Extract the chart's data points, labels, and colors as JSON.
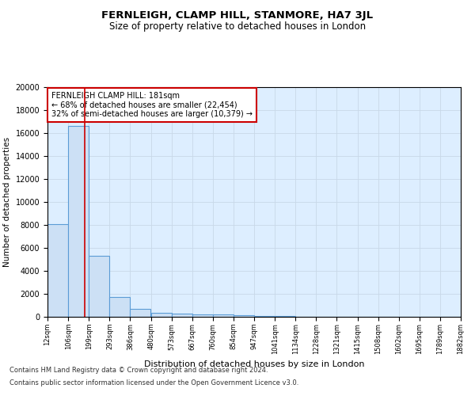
{
  "title": "FERNLEIGH, CLAMP HILL, STANMORE, HA7 3JL",
  "subtitle": "Size of property relative to detached houses in London",
  "xlabel": "Distribution of detached houses by size in London",
  "ylabel": "Number of detached properties",
  "footnote1": "Contains HM Land Registry data © Crown copyright and database right 2024.",
  "footnote2": "Contains public sector information licensed under the Open Government Licence v3.0.",
  "annotation_title": "FERNLEIGH CLAMP HILL: 181sqm",
  "annotation_line1": "← 68% of detached houses are smaller (22,454)",
  "annotation_line2": "32% of semi-detached houses are larger (10,379) →",
  "property_size": 181,
  "bar_left_edges": [
    12,
    106,
    199,
    293,
    386,
    480,
    573,
    667,
    760,
    854,
    947,
    1041,
    1134,
    1228,
    1321,
    1415,
    1508,
    1602,
    1695,
    1789
  ],
  "bar_heights": [
    8100,
    16600,
    5300,
    1750,
    700,
    350,
    280,
    220,
    200,
    150,
    80,
    50,
    30,
    20,
    15,
    10,
    8,
    6,
    5,
    4
  ],
  "bin_width": 93,
  "bar_color": "#cce0f5",
  "bar_edge_color": "#5b9bd5",
  "red_line_color": "#cc0000",
  "annotation_box_color": "#cc0000",
  "grid_color": "#c8d8e8",
  "background_color": "#ddeeff",
  "ylim": [
    0,
    20000
  ],
  "yticks": [
    0,
    2000,
    4000,
    6000,
    8000,
    10000,
    12000,
    14000,
    16000,
    18000,
    20000
  ],
  "tick_labels": [
    "12sqm",
    "106sqm",
    "199sqm",
    "293sqm",
    "386sqm",
    "480sqm",
    "573sqm",
    "667sqm",
    "760sqm",
    "854sqm",
    "947sqm",
    "1041sqm",
    "1134sqm",
    "1228sqm",
    "1321sqm",
    "1415sqm",
    "1508sqm",
    "1602sqm",
    "1695sqm",
    "1789sqm",
    "1882sqm"
  ]
}
